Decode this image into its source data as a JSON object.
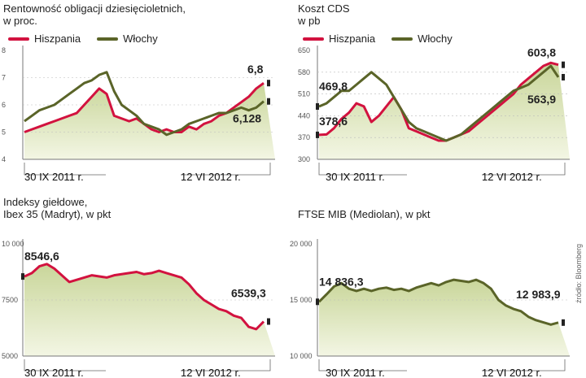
{
  "colors": {
    "spain": "#d2123f",
    "italy": "#5a6428",
    "fill": "#dfe6bd",
    "axis": "#777777"
  },
  "source": "źródło: Bloomberg",
  "chart_data": [
    {
      "id": "bond",
      "type": "line",
      "title": "Rentowność obligacji dziesięcioletnich,",
      "subtitle": "w proc.",
      "legend": [
        "Hiszpania",
        "Włochy"
      ],
      "y_ticks": [
        "8",
        "7",
        "6",
        "5",
        "4"
      ],
      "ylim": [
        4,
        8
      ],
      "date_labels": [
        "30 IX 2011 r.",
        "12 VI 2012 r."
      ],
      "series": [
        {
          "name": "Hiszpania",
          "color_key": "spain",
          "end_label": "6,8",
          "values": [
            5.0,
            5.1,
            5.2,
            5.3,
            5.4,
            5.5,
            5.6,
            5.7,
            6.0,
            6.3,
            6.6,
            6.4,
            5.6,
            5.5,
            5.4,
            5.5,
            5.3,
            5.1,
            5.0,
            5.1,
            5.0,
            5.0,
            5.2,
            5.1,
            5.3,
            5.4,
            5.6,
            5.7,
            5.9,
            6.1,
            6.3,
            6.6,
            6.8
          ]
        },
        {
          "name": "Włochy",
          "color_key": "italy",
          "end_label": "6,128",
          "values": [
            5.4,
            5.6,
            5.8,
            5.9,
            6.0,
            6.2,
            6.4,
            6.6,
            6.8,
            6.9,
            7.1,
            7.2,
            6.5,
            6.0,
            5.8,
            5.6,
            5.3,
            5.2,
            5.1,
            4.9,
            5.0,
            5.1,
            5.3,
            5.4,
            5.5,
            5.6,
            5.7,
            5.7,
            5.8,
            5.9,
            5.8,
            5.9,
            6.128
          ]
        }
      ]
    },
    {
      "id": "cds",
      "type": "line",
      "title": "Koszt CDS",
      "subtitle": "w pb",
      "legend": [
        "Hiszpania",
        "Włochy"
      ],
      "y_ticks": [
        "650",
        "580",
        "510",
        "440",
        "370",
        "300"
      ],
      "ylim": [
        300,
        650
      ],
      "date_labels": [
        "30 IX 2011 r.",
        "12 VI 2012 r."
      ],
      "series": [
        {
          "name": "Hiszpania",
          "color_key": "spain",
          "start_label": "378,6",
          "end_label": "603,8",
          "values": [
            378.6,
            380,
            400,
            430,
            450,
            480,
            470,
            420,
            440,
            470,
            500,
            460,
            400,
            390,
            380,
            370,
            360,
            360,
            370,
            380,
            390,
            410,
            430,
            450,
            470,
            490,
            510,
            540,
            560,
            580,
            600,
            610,
            603.8
          ]
        },
        {
          "name": "Włochy",
          "color_key": "italy",
          "start_label": "469,8",
          "end_label": "563,9",
          "values": [
            469.8,
            480,
            500,
            520,
            520,
            540,
            560,
            580,
            560,
            540,
            500,
            460,
            420,
            400,
            390,
            380,
            370,
            360,
            370,
            380,
            400,
            420,
            440,
            460,
            480,
            500,
            520,
            530,
            540,
            560,
            580,
            600,
            563.9
          ]
        }
      ]
    },
    {
      "id": "ibex",
      "type": "line",
      "title": "Indeksy giełdowe,",
      "subtitle": "Ibex 35 (Madryt), w pkt",
      "y_ticks": [
        "10 000",
        "7500",
        "5000"
      ],
      "ylim": [
        5000,
        10000
      ],
      "date_labels": [
        "30 IX 2011 r.",
        "12 VI 2012 r."
      ],
      "series": [
        {
          "name": "Ibex 35",
          "color_key": "spain",
          "start_label": "8546,6",
          "end_label": "6539,3",
          "values": [
            8546.6,
            8700,
            9000,
            9100,
            8900,
            8600,
            8300,
            8400,
            8500,
            8600,
            8550,
            8500,
            8600,
            8650,
            8700,
            8750,
            8650,
            8700,
            8800,
            8700,
            8600,
            8500,
            8200,
            7800,
            7500,
            7300,
            7100,
            7000,
            6800,
            6700,
            6300,
            6200,
            6539.3
          ]
        }
      ]
    },
    {
      "id": "ftse",
      "type": "line",
      "title": "",
      "subtitle": "FTSE MIB (Mediolan), w pkt",
      "y_ticks": [
        "20 000",
        "15 000",
        "10 000"
      ],
      "ylim": [
        10000,
        20000
      ],
      "date_labels": [
        "30 IX 2011 r.",
        "12 VI 2012 r."
      ],
      "series": [
        {
          "name": "FTSE MIB",
          "color_key": "italy",
          "start_label": "14 836,3",
          "end_label": "12 983,9",
          "values": [
            14836.3,
            15500,
            16200,
            16500,
            16000,
            15800,
            16000,
            15800,
            16000,
            16100,
            15900,
            16000,
            15800,
            16100,
            16300,
            16500,
            16300,
            16600,
            16800,
            16700,
            16600,
            16800,
            16500,
            16000,
            15000,
            14500,
            14200,
            14000,
            13500,
            13200,
            13000,
            12800,
            12983.9
          ]
        }
      ]
    }
  ]
}
